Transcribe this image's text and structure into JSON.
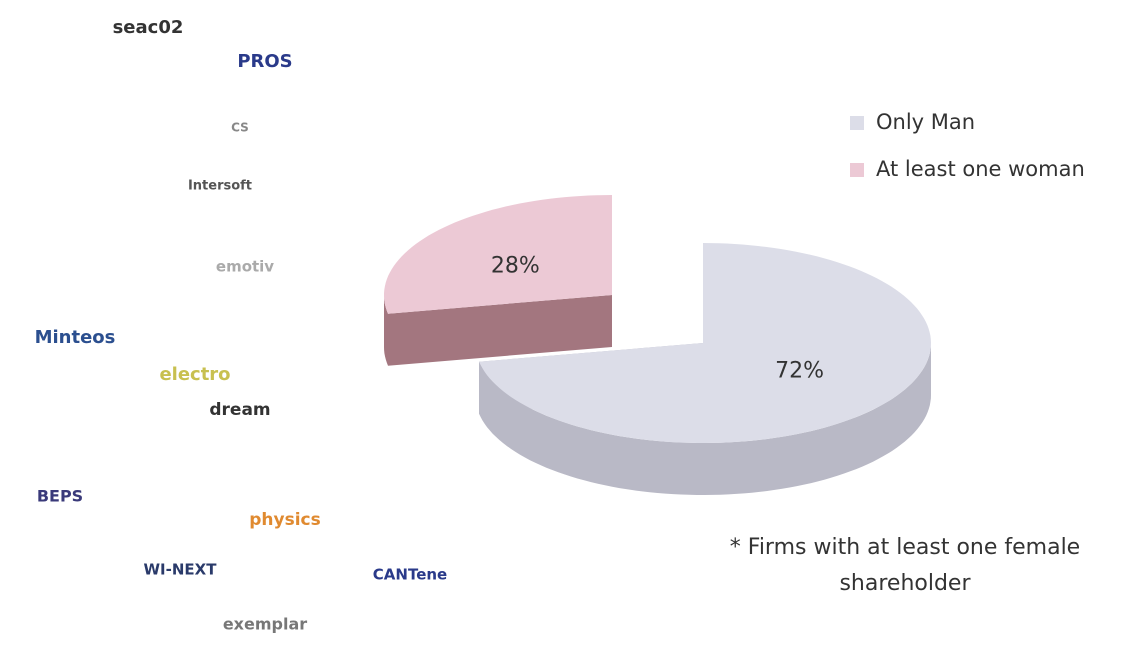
{
  "chart_data": {
    "type": "pie",
    "categories": [
      "Only Man",
      "At least one woman"
    ],
    "values": [
      72,
      28
    ],
    "value_labels": [
      "72%",
      "28%"
    ],
    "colors": [
      "#dcdde8",
      "#ecc9d5"
    ],
    "side_colors": [
      "#b9b9c6",
      "#a3767f"
    ],
    "legend": "top-right",
    "annotation": "* Firms with at least one female shareholder"
  },
  "logos": [
    {
      "label": "seac02",
      "color": "#333333"
    },
    {
      "label": "PROS",
      "color": "#2a3a8a"
    },
    {
      "label": "CS",
      "color": "#888888"
    },
    {
      "label": "Intersoft",
      "color": "#555555"
    },
    {
      "label": "emotiv",
      "color": "#aaaaaa"
    },
    {
      "label": "Minteos",
      "color": "#2b4f8f"
    },
    {
      "label": "electro",
      "color": "#c8c050"
    },
    {
      "label": "dream",
      "color": "#333333"
    },
    {
      "label": "BEPS",
      "color": "#3a3a7a"
    },
    {
      "label": "physics",
      "color": "#e08a30"
    },
    {
      "label": "WI-NEXT",
      "color": "#2a3a6a"
    },
    {
      "label": "CANTene",
      "color": "#2a3a8a"
    },
    {
      "label": "exemplar",
      "color": "#777777"
    }
  ]
}
